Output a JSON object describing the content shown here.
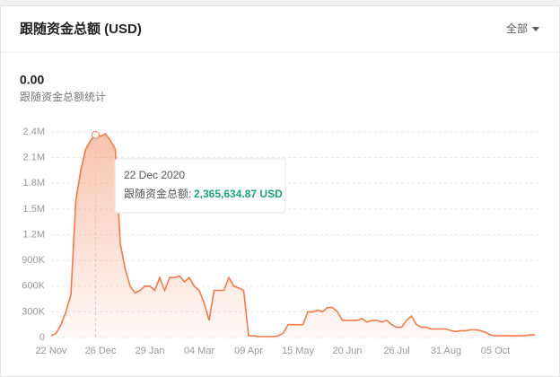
{
  "header": {
    "title": "跟随资金总额 (USD)",
    "filter": "全部"
  },
  "summary": {
    "value": "0.00",
    "label": "跟随资金总额统计"
  },
  "tooltip": {
    "date": "22 Dec 2020",
    "label": "跟随资金总额:",
    "value": "2,365,634.87 USD"
  },
  "chart_data": {
    "type": "area",
    "color": "#f07a4a",
    "grid": true,
    "ylim": [
      0,
      2400000
    ],
    "yticks": [
      0,
      {
        "value": 300000,
        "label": "300K"
      },
      {
        "value": 600000,
        "label": "600K"
      },
      {
        "value": 900000,
        "label": "900K"
      },
      {
        "value": 1200000,
        "label": "1.2M"
      },
      {
        "value": 1500000,
        "label": "1.5M"
      },
      {
        "value": 1800000,
        "label": "1.8M"
      },
      {
        "value": 2100000,
        "label": "2.1M"
      },
      {
        "value": 2400000,
        "label": "2.4M"
      }
    ],
    "categories": [
      "22 Nov",
      null,
      null,
      null,
      null,
      null,
      null,
      null,
      null,
      null,
      "26 Dec",
      null,
      null,
      null,
      null,
      null,
      null,
      null,
      null,
      null,
      "29 Jan",
      null,
      null,
      null,
      null,
      null,
      null,
      null,
      null,
      null,
      "04 Mar",
      null,
      null,
      null,
      null,
      null,
      null,
      null,
      null,
      null,
      "09 Apr",
      null,
      null,
      null,
      null,
      null,
      null,
      null,
      null,
      null,
      "15 May",
      null,
      null,
      null,
      null,
      null,
      null,
      null,
      null,
      null,
      "20 Jun",
      null,
      null,
      null,
      null,
      null,
      null,
      null,
      null,
      null,
      "26 Jul",
      null,
      null,
      null,
      null,
      null,
      null,
      null,
      null,
      null,
      "31 Aug",
      null,
      null,
      null,
      null,
      null,
      null,
      null,
      null,
      null,
      "05 Oct",
      null,
      null,
      null,
      null,
      null,
      null,
      null,
      null
    ],
    "series": [
      {
        "name": "跟随资金总额",
        "values": [
          20000,
          50000,
          150000,
          300000,
          500000,
          1600000,
          1950000,
          2200000,
          2300000,
          2365634.87,
          2350000,
          2380000,
          2300000,
          2200000,
          1100000,
          800000,
          600000,
          520000,
          550000,
          600000,
          600000,
          550000,
          700000,
          550000,
          700000,
          700000,
          720000,
          650000,
          700000,
          600000,
          550000,
          400000,
          200000,
          550000,
          550000,
          550000,
          700000,
          600000,
          580000,
          550000,
          20000,
          20000,
          10000,
          10000,
          10000,
          10000,
          20000,
          50000,
          150000,
          150000,
          150000,
          150000,
          300000,
          300000,
          320000,
          300000,
          350000,
          350000,
          300000,
          200000,
          200000,
          200000,
          200000,
          220000,
          180000,
          200000,
          200000,
          180000,
          200000,
          150000,
          120000,
          120000,
          200000,
          250000,
          150000,
          120000,
          120000,
          100000,
          100000,
          100000,
          100000,
          80000,
          70000,
          80000,
          80000,
          90000,
          90000,
          80000,
          60000,
          30000,
          20000,
          20000,
          20000,
          20000,
          20000,
          20000,
          20000,
          30000,
          30000
        ]
      }
    ]
  }
}
